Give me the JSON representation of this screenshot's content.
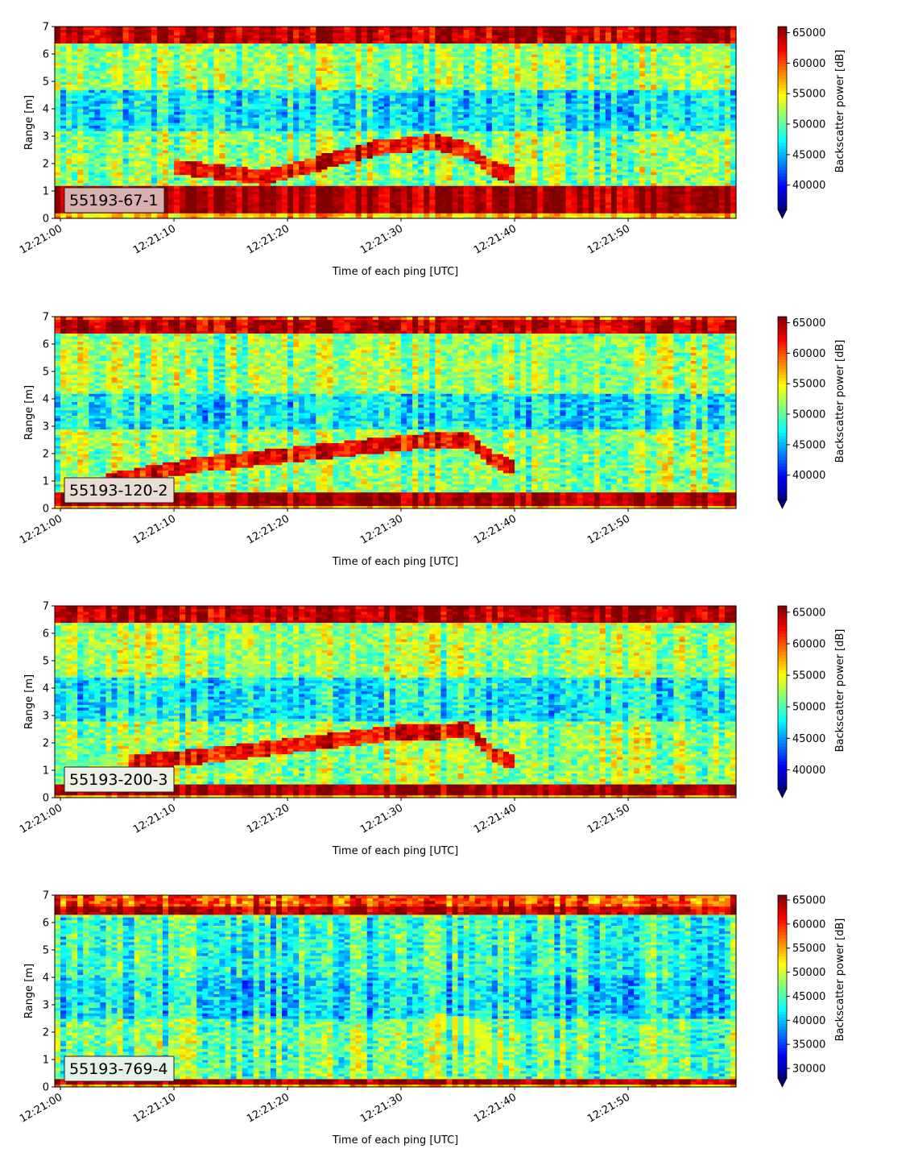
{
  "chart_data": [
    {
      "type": "heatmap",
      "panel_label": "55193-67-1",
      "xlabel": "Time of each ping [UTC]",
      "ylabel": "Range [m]",
      "colorbar_label": "Backscatter power [dB]",
      "colormap": "jet",
      "ylim": [
        0,
        7
      ],
      "yticks": [
        0,
        1,
        2,
        3,
        4,
        5,
        6,
        7
      ],
      "xlim": [
        "12:20:59.5",
        "12:21:59.5"
      ],
      "xticks": [
        "12:21:00",
        "12:21:10",
        "12:21:20",
        "12:21:30",
        "12:21:40",
        "12:21:50"
      ],
      "clim": [
        36000,
        66000
      ],
      "cticks": [
        40000,
        45000,
        50000,
        55000,
        60000,
        65000
      ],
      "colorbar_extend": "min",
      "label_box_color": "#d8b0b0",
      "features": {
        "bottom_band_m": [
          0.25,
          1.15
        ],
        "surface_band_m": [
          6.4,
          7.0
        ],
        "upper_layer_m": [
          4.8,
          6.2
        ],
        "mid_low_layer_m": [
          3.2,
          4.7
        ],
        "fish_track": [
          [
            "12:21:10",
            1.9
          ],
          [
            "12:21:18",
            1.5
          ],
          [
            "12:21:28",
            2.6
          ],
          [
            "12:21:33",
            2.8
          ],
          [
            "12:21:36",
            2.5
          ],
          [
            "12:21:38",
            1.8
          ],
          [
            "12:21:40",
            1.6
          ]
        ]
      }
    },
    {
      "type": "heatmap",
      "panel_label": "55193-120-2",
      "xlabel": "Time of each ping [UTC]",
      "ylabel": "Range [m]",
      "colorbar_label": "Backscatter power [dB]",
      "colormap": "jet",
      "ylim": [
        0,
        7
      ],
      "yticks": [
        0,
        1,
        2,
        3,
        4,
        5,
        6,
        7
      ],
      "xlim": [
        "12:20:59.5",
        "12:21:59.5"
      ],
      "xticks": [
        "12:21:00",
        "12:21:10",
        "12:21:20",
        "12:21:30",
        "12:21:40",
        "12:21:50"
      ],
      "clim": [
        36000,
        66000
      ],
      "cticks": [
        40000,
        45000,
        50000,
        55000,
        60000,
        65000
      ],
      "colorbar_extend": "min",
      "label_box_color": "#e8dcd4",
      "features": {
        "bottom_band_m": [
          0.1,
          0.55
        ],
        "surface_band_m": [
          6.4,
          6.9
        ],
        "upper_layer_m": [
          4.3,
          6.2
        ],
        "mid_low_layer_m": [
          2.9,
          4.2
        ],
        "fish_track": [
          [
            "12:21:04",
            1.0
          ],
          [
            "12:21:12",
            1.6
          ],
          [
            "12:21:30",
            2.4
          ],
          [
            "12:21:33",
            2.5
          ],
          [
            "12:21:36",
            2.5
          ],
          [
            "12:21:38",
            1.8
          ],
          [
            "12:21:40",
            1.5
          ]
        ]
      }
    },
    {
      "type": "heatmap",
      "panel_label": "55193-200-3",
      "xlabel": "Time of each ping [UTC]",
      "ylabel": "Range [m]",
      "colorbar_label": "Backscatter power [dB]",
      "colormap": "jet",
      "ylim": [
        0,
        7
      ],
      "yticks": [
        0,
        1,
        2,
        3,
        4,
        5,
        6,
        7
      ],
      "xlim": [
        "12:20:59.5",
        "12:21:59.5"
      ],
      "xticks": [
        "12:21:00",
        "12:21:10",
        "12:21:20",
        "12:21:30",
        "12:21:40",
        "12:21:50"
      ],
      "clim": [
        37000,
        66000
      ],
      "cticks": [
        40000,
        45000,
        50000,
        55000,
        60000,
        65000
      ],
      "colorbar_extend": "min",
      "label_box_color": "#eef2e6",
      "features": {
        "bottom_band_m": [
          0.1,
          0.5
        ],
        "surface_band_m": [
          6.4,
          7.0
        ],
        "upper_layer_m": [
          4.5,
          6.2
        ],
        "mid_low_layer_m": [
          2.8,
          4.4
        ],
        "fish_track": [
          [
            "12:21:06",
            1.3
          ],
          [
            "12:21:12",
            1.5
          ],
          [
            "12:21:30",
            2.4
          ],
          [
            "12:21:33",
            2.4
          ],
          [
            "12:21:36",
            2.5
          ],
          [
            "12:21:38",
            1.6
          ],
          [
            "12:21:40",
            1.3
          ]
        ]
      }
    },
    {
      "type": "heatmap",
      "panel_label": "55193-769-4",
      "xlabel": "Time of each ping [UTC]",
      "ylabel": "Range [m]",
      "colorbar_label": "Backscatter power [dB]",
      "colormap": "jet",
      "ylim": [
        0,
        7
      ],
      "yticks": [
        0,
        1,
        2,
        3,
        4,
        5,
        6,
        7
      ],
      "xlim": [
        "12:20:59.5",
        "12:21:59.5"
      ],
      "xticks": [
        "12:21:00",
        "12:21:10",
        "12:21:20",
        "12:21:30",
        "12:21:40",
        "12:21:50"
      ],
      "clim": [
        28000,
        66000
      ],
      "cticks": [
        30000,
        35000,
        40000,
        45000,
        50000,
        55000,
        60000,
        65000
      ],
      "colorbar_extend": "min",
      "label_box_color": "#e6f2e6",
      "features": {
        "bottom_band_m": [
          0.05,
          0.3
        ],
        "surface_band_m": [
          6.3,
          6.6
        ],
        "upper_layer_m": [
          4.0,
          6.2
        ],
        "mid_low_layer_m": [
          2.5,
          4.0
        ],
        "fish_track": [
          [
            "12:21:33",
            2.4
          ],
          [
            "12:21:36",
            2.3
          ],
          [
            "12:21:39",
            1.3
          ]
        ]
      }
    }
  ]
}
